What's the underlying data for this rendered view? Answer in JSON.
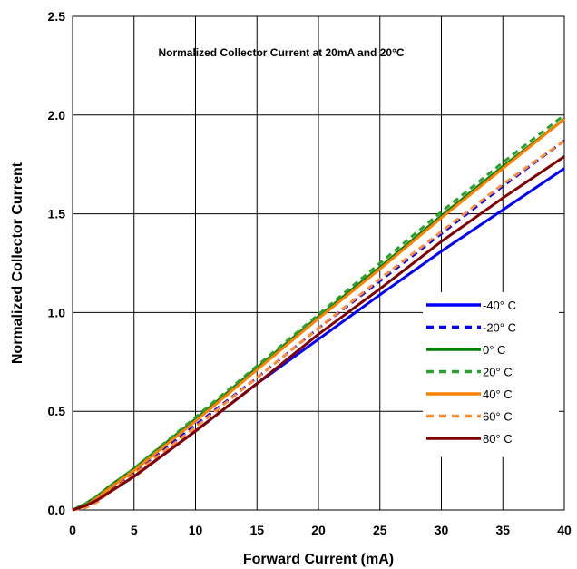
{
  "chart_data": {
    "type": "line",
    "title": "",
    "annotation": "Normalized Collector Current at 20mA and 20°C",
    "xlabel": "Forward Current (mA)",
    "ylabel": "Normalized Collector Current",
    "xlim": [
      0,
      40
    ],
    "ylim": [
      0,
      2.5
    ],
    "x_ticks": [
      "0",
      "5",
      "10",
      "15",
      "20",
      "25",
      "30",
      "35",
      "40"
    ],
    "y_ticks": [
      "0.0",
      "0.5",
      "1.0",
      "1.5",
      "2.0",
      "2.5"
    ],
    "grid": true,
    "legend_position": "bottom-right",
    "series": [
      {
        "name": "-40° C",
        "color": "#0000ff",
        "dash": false,
        "x": [
          0,
          1,
          2,
          3,
          5,
          10,
          15,
          20,
          25,
          30,
          35,
          40
        ],
        "y": [
          0,
          0.02,
          0.05,
          0.09,
          0.17,
          0.4,
          0.64,
          0.865,
          1.09,
          1.31,
          1.52,
          1.73
        ]
      },
      {
        "name": "-20° C",
        "color": "#0000ff",
        "dash": true,
        "x": [
          0,
          1,
          2,
          3,
          5,
          10,
          15,
          20,
          25,
          30,
          35,
          40
        ],
        "y": [
          0,
          0.02,
          0.05,
          0.1,
          0.19,
          0.43,
          0.67,
          0.92,
          1.16,
          1.4,
          1.64,
          1.87
        ]
      },
      {
        "name": "0° C",
        "color": "#008000",
        "dash": false,
        "x": [
          0,
          1,
          2,
          3,
          5,
          10,
          15,
          20,
          25,
          30,
          35,
          40
        ],
        "y": [
          0,
          0.03,
          0.07,
          0.12,
          0.21,
          0.46,
          0.72,
          0.98,
          1.23,
          1.49,
          1.74,
          1.98
        ]
      },
      {
        "name": "20° C",
        "color": "#2ca02c",
        "dash": true,
        "x": [
          0,
          1,
          2,
          3,
          5,
          10,
          15,
          20,
          25,
          30,
          35,
          40
        ],
        "y": [
          0,
          0.03,
          0.07,
          0.12,
          0.21,
          0.47,
          0.73,
          0.99,
          1.25,
          1.51,
          1.76,
          2.0
        ]
      },
      {
        "name": "40° C",
        "color": "#ff8000",
        "dash": false,
        "x": [
          0,
          1,
          2,
          3,
          5,
          10,
          15,
          20,
          25,
          30,
          35,
          40
        ],
        "y": [
          0,
          0.02,
          0.06,
          0.11,
          0.2,
          0.45,
          0.71,
          0.97,
          1.22,
          1.48,
          1.73,
          1.98
        ]
      },
      {
        "name": "60° C",
        "color": "#ff8c33",
        "dash": true,
        "x": [
          0,
          1,
          2,
          3,
          5,
          10,
          15,
          20,
          25,
          30,
          35,
          40
        ],
        "y": [
          0,
          0.01,
          0.04,
          0.09,
          0.18,
          0.42,
          0.67,
          0.92,
          1.17,
          1.41,
          1.65,
          1.87
        ]
      },
      {
        "name": "80° C",
        "color": "#800000",
        "dash": false,
        "x": [
          0,
          1,
          2,
          3,
          5,
          10,
          15,
          20,
          25,
          30,
          35,
          40
        ],
        "y": [
          0,
          0.02,
          0.05,
          0.09,
          0.17,
          0.4,
          0.64,
          0.89,
          1.12,
          1.36,
          1.58,
          1.79
        ]
      }
    ]
  }
}
